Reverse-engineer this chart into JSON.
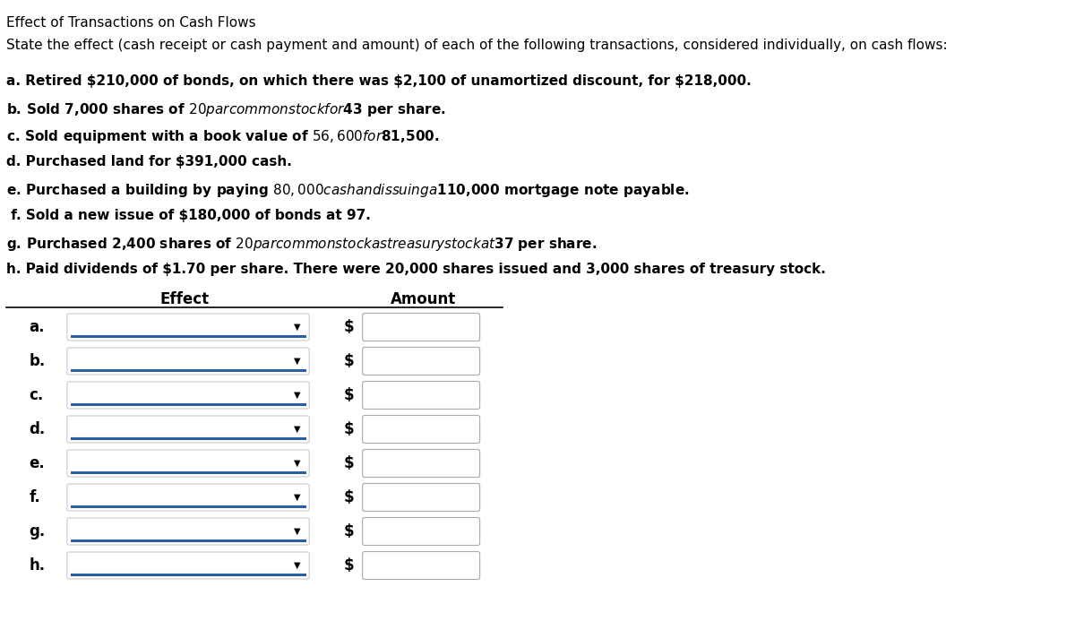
{
  "title": "Effect of Transactions on Cash Flows",
  "subtitle": "State the effect (cash receipt or cash payment and amount) of each of the following transactions, considered individually, on cash flows:",
  "transactions": [
    "a. Retired $210,000 of bonds, on which there was $2,100 of unamortized discount, for $218,000.",
    "b. Sold 7,000 shares of $20 par common stock for $43 per share.",
    "c. Sold equipment with a book value of $56,600 for $81,500.",
    "d. Purchased land for $391,000 cash.",
    "e. Purchased a building by paying $80,000 cash and issuing a $110,000 mortgage note payable.",
    " f. Sold a new issue of $180,000 of bonds at 97.",
    "g. Purchased 2,400 shares of $20 par common stock as treasury stock at $37 per share.",
    "h. Paid dividends of $1.70 per share. There were 20,000 shares issued and 3,000 shares of treasury stock."
  ],
  "row_labels": [
    "a.",
    "b.",
    "c.",
    "d.",
    "e.",
    "f.",
    "g.",
    "h."
  ],
  "col_headers": [
    "Effect",
    "Amount"
  ],
  "background_color": "#ffffff",
  "text_color": "#000000",
  "header_underline_color": "#000000",
  "dropdown_box_color": "#ffffff",
  "dropdown_border_color": "#cccccc",
  "dropdown_line_color": "#2a5fa5",
  "amount_box_border_color": "#aaaaaa",
  "font_size_title": 11,
  "font_size_subtitle": 11,
  "font_size_transactions": 11,
  "font_size_headers": 12,
  "font_size_labels": 12
}
